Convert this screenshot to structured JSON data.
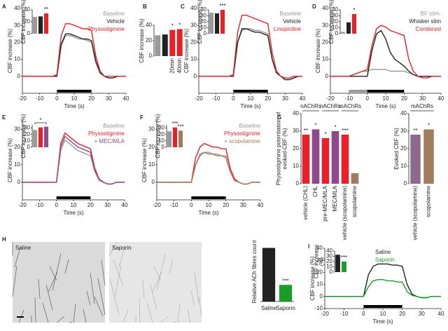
{
  "chart_data": [
    {
      "panel": "A",
      "type": "line",
      "xlabel": "Time (s)",
      "ylabel": "CBF increase (%)",
      "x": [
        -20,
        -17.5,
        -15,
        -12.5,
        -10,
        -7.5,
        -5,
        -2.5,
        0,
        2.5,
        5,
        7.5,
        10,
        12.5,
        15,
        17.5,
        20,
        22.5,
        25,
        27.5,
        30,
        32.5,
        35,
        37.5,
        40
      ],
      "xlim": [
        -20,
        40
      ],
      "xticks": [
        -20,
        -10,
        0,
        10,
        20,
        30,
        40
      ],
      "ylim": [
        -10,
        40
      ],
      "yticks": [
        0,
        10,
        20,
        30,
        40
      ],
      "stim": [
        0,
        20
      ],
      "series": [
        {
          "name": "Baseline",
          "color": "#9a9a9a",
          "values": [
            0,
            0,
            0,
            0,
            0,
            0,
            0,
            0,
            0,
            18,
            24,
            24,
            23,
            22,
            22,
            21,
            20,
            8,
            2,
            0,
            -1,
            -1,
            0,
            0,
            0
          ]
        },
        {
          "name": "Vehicle",
          "color": "#222222",
          "values": [
            0,
            0,
            0,
            0,
            0,
            0,
            0,
            0,
            0,
            19,
            25,
            25,
            24,
            23,
            22,
            22,
            21,
            9,
            2,
            0,
            -1,
            -1,
            0,
            0,
            0
          ]
        },
        {
          "name": "Physostigmine",
          "color": "#e8202a",
          "values": [
            0,
            0,
            0,
            0,
            0,
            0,
            0,
            0,
            1,
            24,
            31,
            31,
            30,
            29,
            28,
            28,
            27,
            12,
            3,
            0,
            0,
            0,
            0,
            0,
            0
          ]
        }
      ],
      "inset": {
        "type": "bar",
        "ylabel": "CBF increase (%)",
        "ylim": [
          0,
          40
        ],
        "yticks": [
          0,
          20,
          40
        ],
        "values": [
          28,
          29,
          34
        ],
        "colors": [
          "#9a9a9a",
          "#222222",
          "#e8202a"
        ],
        "stars": [
          null,
          null,
          "**"
        ]
      }
    },
    {
      "panel": "B",
      "type": "bar",
      "ylabel": "CBF increase (%)",
      "ylim": [
        0,
        40
      ],
      "yticks": [
        0,
        20,
        40
      ],
      "rotate_labels": true,
      "categories": [
        null,
        null,
        "20min",
        "40min"
      ],
      "values": [
        27,
        28,
        34,
        35
      ],
      "colors": [
        "#9a9a9a",
        "#222222",
        "#e8202a",
        "#e8202a"
      ],
      "stars": [
        null,
        null,
        "*",
        "*"
      ]
    },
    {
      "panel": "C",
      "type": "line",
      "xlabel": "Time (s)",
      "ylabel": "CBF increase (%)",
      "x": [
        -20,
        -17.5,
        -15,
        -12.5,
        -10,
        -7.5,
        -5,
        -2.5,
        0,
        2.5,
        5,
        7.5,
        10,
        12.5,
        15,
        17.5,
        20,
        22.5,
        25,
        27.5,
        30,
        32.5,
        35,
        37.5,
        40
      ],
      "xlim": [
        -20,
        40
      ],
      "xticks": [
        -20,
        -10,
        0,
        10,
        20,
        30,
        40
      ],
      "ylim": [
        -10,
        40
      ],
      "yticks": [
        0,
        10,
        20,
        30,
        40
      ],
      "stim": [
        0,
        20
      ],
      "series": [
        {
          "name": "Baseline",
          "color": "#9a9a9a",
          "values": [
            0,
            0,
            0,
            0,
            0,
            0,
            0,
            0,
            0,
            20,
            27,
            28,
            28,
            27,
            27,
            26,
            25,
            10,
            2,
            0,
            -2,
            -2,
            -1,
            0,
            0
          ]
        },
        {
          "name": "Vehicle",
          "color": "#222222",
          "values": [
            0,
            0,
            0,
            0,
            0,
            0,
            0,
            0,
            0,
            20,
            28,
            28,
            27,
            26,
            26,
            25,
            24,
            10,
            2,
            0,
            -2,
            -2,
            -1,
            0,
            0
          ]
        },
        {
          "name": "Linopirdine",
          "color": "#e8202a",
          "values": [
            0,
            0,
            0,
            0,
            0,
            0,
            0,
            0,
            1,
            26,
            36,
            36,
            35,
            34,
            33,
            32,
            31,
            14,
            3,
            0,
            -1,
            -1,
            0,
            0,
            0
          ]
        }
      ],
      "inset": {
        "type": "bar",
        "ylabel": "CBF increase (%)",
        "ylim": [
          0,
          40
        ],
        "yticks": [
          0,
          10,
          20,
          30,
          40
        ],
        "values": [
          35,
          34,
          40
        ],
        "colors": [
          "#9a9a9a",
          "#222222",
          "#e8202a"
        ],
        "stars": [
          null,
          null,
          "***"
        ]
      }
    },
    {
      "panel": "D",
      "type": "line",
      "xlabel": "Time (s)",
      "ylabel": "CBF increase (%)",
      "x": [
        -20,
        -17.5,
        -15,
        -12.5,
        -10,
        -7.5,
        -5,
        -2.5,
        0,
        2.5,
        5,
        7.5,
        10,
        12.5,
        15,
        17.5,
        20,
        22.5,
        25,
        27.5,
        30,
        32.5,
        35,
        37.5,
        40
      ],
      "xlim": [
        -20,
        40
      ],
      "xticks": [
        -20,
        -10,
        0,
        10,
        20,
        30,
        40
      ],
      "ylim": [
        -10,
        40
      ],
      "yticks": [
        0,
        10,
        20,
        30,
        40
      ],
      "stim": [
        0,
        20
      ],
      "bf_stim": [
        -10,
        0
      ],
      "series": [
        {
          "name": "BF stim.",
          "color": "#9a9a9a",
          "values": [
            0,
            0,
            0,
            0,
            0,
            1,
            2,
            3,
            3,
            4,
            4,
            4,
            4,
            3,
            3,
            3,
            3,
            2,
            1,
            0,
            0,
            0,
            0,
            0,
            0
          ]
        },
        {
          "name": "Whisker stim",
          "color": "#222222",
          "values": [
            0,
            0,
            0,
            0,
            0,
            0,
            0,
            0,
            0,
            15,
            25,
            27,
            22,
            14,
            10,
            8,
            6,
            3,
            1,
            0,
            0,
            0,
            0,
            0,
            0
          ]
        },
        {
          "name": "Combined",
          "color": "#e8202a",
          "values": [
            0,
            0,
            0,
            0,
            0,
            1,
            2,
            3,
            4,
            18,
            28,
            30,
            29,
            27,
            26,
            25,
            24,
            10,
            3,
            0,
            -1,
            -1,
            0,
            0,
            0
          ]
        }
      ],
      "inset": {
        "type": "bar",
        "ylabel": "CBF increase (%)",
        "ylim": [
          0,
          40
        ],
        "yticks": [
          0,
          10,
          20,
          30,
          40
        ],
        "values": [
          3,
          19,
          33
        ],
        "colors": [
          "#9a9a9a",
          "#222222",
          "#e8202a"
        ],
        "stars": [
          null,
          null,
          "*"
        ]
      }
    },
    {
      "panel": "E",
      "type": "line",
      "xlabel": "Time (s)",
      "ylabel": "CBF increase (%)",
      "x": [
        -20,
        -17.5,
        -15,
        -12.5,
        -10,
        -7.5,
        -5,
        -2.5,
        0,
        2.5,
        5,
        7.5,
        10,
        12.5,
        15,
        17.5,
        20,
        22.5,
        25,
        27.5,
        30,
        32.5,
        35,
        37.5,
        40
      ],
      "xlim": [
        -20,
        40
      ],
      "xticks": [
        -20,
        -10,
        0,
        10,
        20,
        30,
        40
      ],
      "ylim": [
        -10,
        35
      ],
      "yticks": [
        0,
        10,
        20,
        30
      ],
      "stim": [
        0,
        20
      ],
      "series": [
        {
          "name": "Baseline",
          "color": "#9a9a9a",
          "values": [
            0,
            0,
            0,
            0,
            0,
            0,
            0,
            0,
            0,
            18,
            24,
            22,
            20,
            18,
            17,
            16,
            15,
            6,
            1,
            0,
            -1,
            -1,
            0,
            0,
            0
          ]
        },
        {
          "name": "Physostigmine",
          "color": "#e8202a",
          "values": [
            0,
            0,
            0,
            0,
            0,
            0,
            0,
            0,
            0,
            22,
            28,
            26,
            24,
            22,
            21,
            20,
            19,
            8,
            2,
            0,
            -1,
            -1,
            0,
            0,
            0
          ]
        },
        {
          "name": "+ MEC/MLA",
          "color": "#8e4a8c",
          "values": [
            0,
            0,
            0,
            0,
            0,
            0,
            0,
            0,
            0,
            20,
            26,
            24,
            22,
            20,
            19,
            18,
            17,
            7,
            2,
            0,
            -1,
            -1,
            0,
            0,
            0
          ]
        }
      ],
      "inset": {
        "type": "bar",
        "ylabel": "CBF increase (%)",
        "ylim": [
          0,
          35
        ],
        "yticks": [
          0,
          10,
          20,
          30
        ],
        "values": [
          27,
          31,
          32
        ],
        "colors": [
          "#9a9a9a",
          "#e8202a",
          "#8e4a8c"
        ],
        "comparison": "*"
      }
    },
    {
      "panel": "F",
      "type": "line",
      "xlabel": "Time (s)",
      "ylabel": "CBF increase (%)",
      "x": [
        -20,
        -17.5,
        -15,
        -12.5,
        -10,
        -7.5,
        -5,
        -2.5,
        0,
        2.5,
        5,
        7.5,
        10,
        12.5,
        15,
        17.5,
        20,
        22.5,
        25,
        27.5,
        30,
        32.5,
        35,
        37.5,
        40
      ],
      "xlim": [
        -20,
        40
      ],
      "xticks": [
        -20,
        -10,
        0,
        10,
        20,
        30,
        40
      ],
      "ylim": [
        -10,
        35
      ],
      "yticks": [
        0,
        10,
        20,
        30
      ],
      "stim": [
        0,
        20
      ],
      "series": [
        {
          "name": "Baseline",
          "color": "#9a9a9a",
          "values": [
            0,
            0,
            0,
            0,
            0,
            0,
            0,
            0,
            0,
            10,
            16,
            17,
            17,
            16,
            16,
            15,
            15,
            6,
            1,
            0,
            -1,
            -1,
            0,
            0,
            0
          ]
        },
        {
          "name": "Physostigmine",
          "color": "#e8202a",
          "values": [
            0,
            0,
            0,
            0,
            0,
            0,
            0,
            0,
            0,
            14,
            20,
            22,
            21,
            20,
            20,
            19,
            19,
            8,
            2,
            0,
            -1,
            -1,
            0,
            0,
            0
          ]
        },
        {
          "name": "+ scopolamine",
          "color": "#a07c5a",
          "values": [
            0,
            0,
            0,
            0,
            0,
            0,
            0,
            0,
            0,
            10,
            15,
            17,
            16,
            16,
            15,
            15,
            14,
            6,
            1,
            0,
            -1,
            -1,
            0,
            0,
            0
          ]
        }
      ],
      "inset": {
        "type": "bar",
        "ylabel": "CBF increase (%)",
        "ylim": [
          0,
          35
        ],
        "yticks": [
          0,
          10,
          20,
          30
        ],
        "values": [
          25,
          31,
          26
        ],
        "colors": [
          "#9a9a9a",
          "#e8202a",
          "#a07c5a"
        ],
        "stars": [
          null,
          "***",
          "***"
        ]
      }
    },
    {
      "panel": "G",
      "type": "bar",
      "ylabel": "Physostigmine potentiation of evoked-CBF (%)",
      "ylim": [
        0,
        40
      ],
      "yticks": [
        0,
        10,
        20,
        30,
        40
      ],
      "rotate_labels": true,
      "categories": [
        "vehicle (CHL)",
        "CHL",
        "pre-MEC/MLA",
        "MEC/MLA",
        "vehicle (scopolamine)",
        "scopolamine"
      ],
      "values": [
        28,
        31,
        26,
        30,
        28,
        6
      ],
      "colors": [
        "#e8202a",
        "#8e4a8c",
        "#e8202a",
        "#8e4a8c",
        "#e8202a",
        "#a07c5a"
      ],
      "stars": [
        "**",
        "*",
        "*",
        "*",
        "***",
        null
      ],
      "groups": [
        "nAChRs",
        "nAChRs",
        "mAChRs"
      ]
    },
    {
      "type": "bar",
      "ylabel": "Evoked CBF (%)",
      "ylim": [
        0,
        40
      ],
      "yticks": [
        0,
        10,
        20,
        30,
        40
      ],
      "rotate_labels": true,
      "categories": [
        "vehicle (scopolamine)",
        "scopolamine"
      ],
      "values": [
        28,
        31
      ],
      "colors": [
        "#8e6a8a",
        "#a07c5a"
      ],
      "stars": [
        "**",
        "*"
      ],
      "groups": [
        "mAChRs"
      ]
    },
    {
      "panel": "H",
      "type": "bar",
      "image_labels": [
        "Saline",
        "Saporin"
      ],
      "ylabel": "Relative ACh fibres count",
      "ylim": [
        0,
        5
      ],
      "categories": [
        "Saline",
        "Saporin"
      ],
      "values": [
        4.5,
        1.4
      ],
      "colors": [
        "#222222",
        "#1a9e2a"
      ],
      "stars": [
        null,
        "***"
      ]
    },
    {
      "panel": "I",
      "type": "line",
      "xlabel": "Time (s)",
      "ylabel": "CBF increase (%)",
      "x": [
        -20,
        -17.5,
        -15,
        -12.5,
        -10,
        -7.5,
        -5,
        -2.5,
        0,
        2.5,
        5,
        7.5,
        10,
        12.5,
        15,
        17.5,
        20,
        22.5,
        25,
        27.5,
        30,
        32.5,
        35,
        37.5,
        40
      ],
      "xlim": [
        -20,
        40
      ],
      "xticks": [
        -20,
        -10,
        0,
        10,
        20,
        30,
        40
      ],
      "ylim": [
        -10,
        40
      ],
      "yticks": [
        -10,
        0,
        10,
        20,
        30,
        40
      ],
      "stim": [
        0,
        20
      ],
      "series": [
        {
          "name": "Saline",
          "color": "#222222",
          "values": [
            0,
            0,
            0,
            0,
            0,
            0,
            0,
            0,
            0,
            18,
            25,
            27,
            27,
            27,
            26,
            26,
            25,
            10,
            2,
            0,
            -1,
            -1,
            0,
            0,
            0
          ]
        },
        {
          "name": "Saporin",
          "color": "#1a9e2a",
          "values": [
            0,
            0,
            0,
            0,
            0,
            0,
            0,
            0,
            0,
            8,
            13,
            14,
            14,
            13,
            13,
            12,
            12,
            4,
            1,
            0,
            -1,
            -1,
            0,
            0,
            0
          ]
        }
      ],
      "inset": {
        "type": "bar",
        "ylabel": "CBF increase (%)",
        "ylim": [
          0,
          40
        ],
        "yticks": [
          0,
          10,
          20,
          30,
          40
        ],
        "values": [
          33,
          20
        ],
        "colors": [
          "#222222",
          "#1a9e2a"
        ],
        "stars": [
          null,
          "***"
        ]
      }
    }
  ]
}
